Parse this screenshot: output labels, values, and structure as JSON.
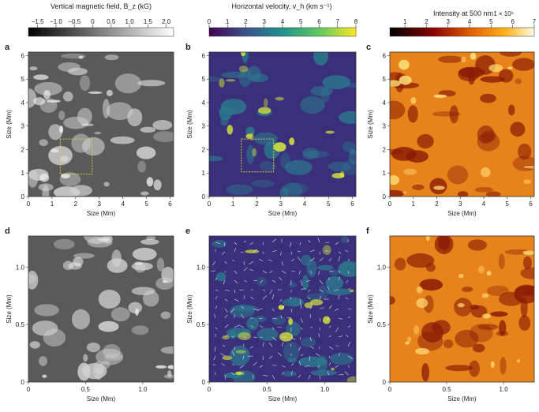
{
  "chart_data": {
    "type": "heatmap",
    "colorbars": [
      {
        "title": "Vertical magnetic field, B_z (kG)",
        "ticks": [
          "−1.5",
          "−1.0",
          "−0.5",
          "0",
          "0.5",
          "1.0",
          "1.5",
          "2.0"
        ],
        "range": [
          -1.75,
          2.2
        ],
        "colormap": "gray"
      },
      {
        "title": "Horizontal velocity, v_h (km s⁻¹)",
        "ticks": [
          "0",
          "1",
          "2",
          "3",
          "4",
          "5",
          "6",
          "7",
          "8"
        ],
        "range": [
          0,
          8
        ],
        "colormap": "viridis"
      },
      {
        "title": "Intensity at 500 nm",
        "multiplier": "1 × 10⁶",
        "ticks": [
          "1",
          "2",
          "3",
          "4",
          "5",
          "6",
          "7"
        ],
        "range": [
          0.3,
          7
        ],
        "colormap": "heat"
      }
    ],
    "panels": [
      {
        "label": "a",
        "quantity": "Vertical magnetic field",
        "xlabel": "Size (Mm)",
        "ylabel": "Size (Mm)",
        "xticks": [
          "0",
          "1",
          "2",
          "3",
          "4",
          "5",
          "6"
        ],
        "yticks": [
          "0",
          "1",
          "2",
          "3",
          "4",
          "5",
          "6"
        ],
        "xlim": [
          0,
          6.15
        ],
        "ylim": [
          0,
          6.15
        ],
        "inset_box": {
          "x": [
            1.35,
            2.7
          ],
          "y": [
            0.95,
            2.45
          ]
        }
      },
      {
        "label": "b",
        "quantity": "Horizontal velocity",
        "xlabel": "Size (Mm)",
        "ylabel": "Size (Mm)",
        "xticks": [
          "0",
          "1",
          "2",
          "3",
          "4",
          "5",
          "6"
        ],
        "yticks": [
          "0",
          "1",
          "2",
          "3",
          "4",
          "5",
          "6"
        ],
        "xlim": [
          0,
          6.15
        ],
        "ylim": [
          0,
          6.15
        ],
        "inset_box": {
          "x": [
            1.35,
            2.7
          ],
          "y": [
            1.05,
            2.45
          ]
        }
      },
      {
        "label": "c",
        "quantity": "Intensity at 500 nm",
        "xlabel": "Size (Mm)",
        "ylabel": "Size (Mm)",
        "xticks": [
          "0",
          "1",
          "2",
          "3",
          "4",
          "5",
          "6"
        ],
        "yticks": [
          "0",
          "1",
          "2",
          "3",
          "4",
          "5",
          "6"
        ],
        "xlim": [
          0,
          6.15
        ],
        "ylim": [
          0,
          6.15
        ]
      },
      {
        "label": "d",
        "quantity": "Vertical magnetic field (zoom)",
        "xlabel": "Size (Mm)",
        "ylabel": "Size (Mm)",
        "xticks": [
          "0",
          "0.5",
          "1.0"
        ],
        "yticks": [
          "0",
          "0.5",
          "1.0"
        ],
        "xlim": [
          0,
          1.27
        ],
        "ylim": [
          0,
          1.27
        ]
      },
      {
        "label": "e",
        "quantity": "Horizontal velocity (zoom)",
        "xlabel": "Size (Mm)",
        "ylabel": "Size (Mm)",
        "xticks": [
          "0",
          "0.5",
          "1.0"
        ],
        "yticks": [
          "0",
          "0.5",
          "1.0"
        ],
        "xlim": [
          0,
          1.27
        ],
        "ylim": [
          0,
          1.27
        ]
      },
      {
        "label": "f",
        "quantity": "Intensity at 500 nm (zoom)",
        "xlabel": "Size (Mm)",
        "ylabel": "Size (Mm)",
        "xticks": [
          "0",
          "0.5",
          "1.0"
        ],
        "yticks": [
          "0",
          "0.5",
          "1.0"
        ],
        "xlim": [
          0,
          1.27
        ],
        "ylim": [
          0,
          1.27
        ]
      }
    ],
    "grid": false,
    "legend": "colorbars above each column",
    "colors": {
      "inset_box": "#d8d23a",
      "axis": "#333333"
    }
  }
}
